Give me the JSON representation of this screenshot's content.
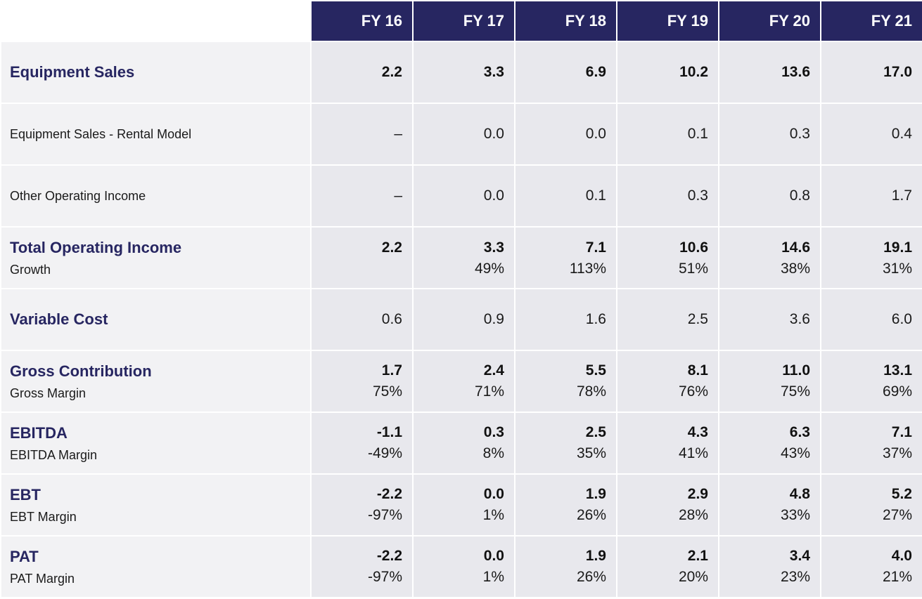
{
  "header": {
    "years": [
      "FY 16",
      "FY 17",
      "FY 18",
      "FY 19",
      "FY 20",
      "FY 21"
    ]
  },
  "rows": [
    {
      "label": "Equipment Sales",
      "sub_label": "",
      "style": "bold",
      "values": [
        "2.2",
        "3.3",
        "6.9",
        "10.2",
        "13.6",
        "17.0"
      ],
      "sub_values": [
        "",
        "",
        "",
        "",
        "",
        ""
      ]
    },
    {
      "label": "Equipment Sales - Rental Model",
      "sub_label": "",
      "style": "plain",
      "values": [
        "–",
        "0.0",
        "0.0",
        "0.1",
        "0.3",
        "0.4"
      ],
      "sub_values": [
        "",
        "",
        "",
        "",
        "",
        ""
      ]
    },
    {
      "label": "Other Operating Income",
      "sub_label": "",
      "style": "plain",
      "values": [
        "–",
        "0.0",
        "0.1",
        "0.3",
        "0.8",
        "1.7"
      ],
      "sub_values": [
        "",
        "",
        "",
        "",
        "",
        ""
      ]
    },
    {
      "label": "Total Operating Income",
      "sub_label": "Growth",
      "style": "bold",
      "values": [
        "2.2",
        "3.3",
        "7.1",
        "10.6",
        "14.6",
        "19.1"
      ],
      "sub_values": [
        "",
        "49%",
        "113%",
        "51%",
        "38%",
        "31%"
      ]
    },
    {
      "label": "Variable Cost",
      "sub_label": "",
      "style": "bold-label",
      "values": [
        "0.6",
        "0.9",
        "1.6",
        "2.5",
        "3.6",
        "6.0"
      ],
      "sub_values": [
        "",
        "",
        "",
        "",
        "",
        ""
      ]
    },
    {
      "label": "Gross Contribution",
      "sub_label": "Gross Margin",
      "style": "bold",
      "values": [
        "1.7",
        "2.4",
        "5.5",
        "8.1",
        "11.0",
        "13.1"
      ],
      "sub_values": [
        "75%",
        "71%",
        "78%",
        "76%",
        "75%",
        "69%"
      ]
    },
    {
      "label": "EBITDA",
      "sub_label": "EBITDA Margin",
      "style": "bold",
      "values": [
        "-1.1",
        "0.3",
        "2.5",
        "4.3",
        "6.3",
        "7.1"
      ],
      "sub_values": [
        "-49%",
        "8%",
        "35%",
        "41%",
        "43%",
        "37%"
      ]
    },
    {
      "label": "EBT",
      "sub_label": "EBT Margin",
      "style": "bold",
      "values": [
        "-2.2",
        "0.0",
        "1.9",
        "2.9",
        "4.8",
        "5.2"
      ],
      "sub_values": [
        "-97%",
        "1%",
        "26%",
        "28%",
        "33%",
        "27%"
      ]
    },
    {
      "label": "PAT",
      "sub_label": "PAT Margin",
      "style": "bold",
      "values": [
        "-2.2",
        "0.0",
        "1.9",
        "2.1",
        "3.4",
        "4.0"
      ],
      "sub_values": [
        "-97%",
        "1%",
        "26%",
        "20%",
        "23%",
        "21%"
      ]
    }
  ],
  "colors": {
    "header_bg": "#272661",
    "label_text": "#272661",
    "label_bg": "#f2f2f4",
    "value_bg": "#e8e8ed"
  }
}
